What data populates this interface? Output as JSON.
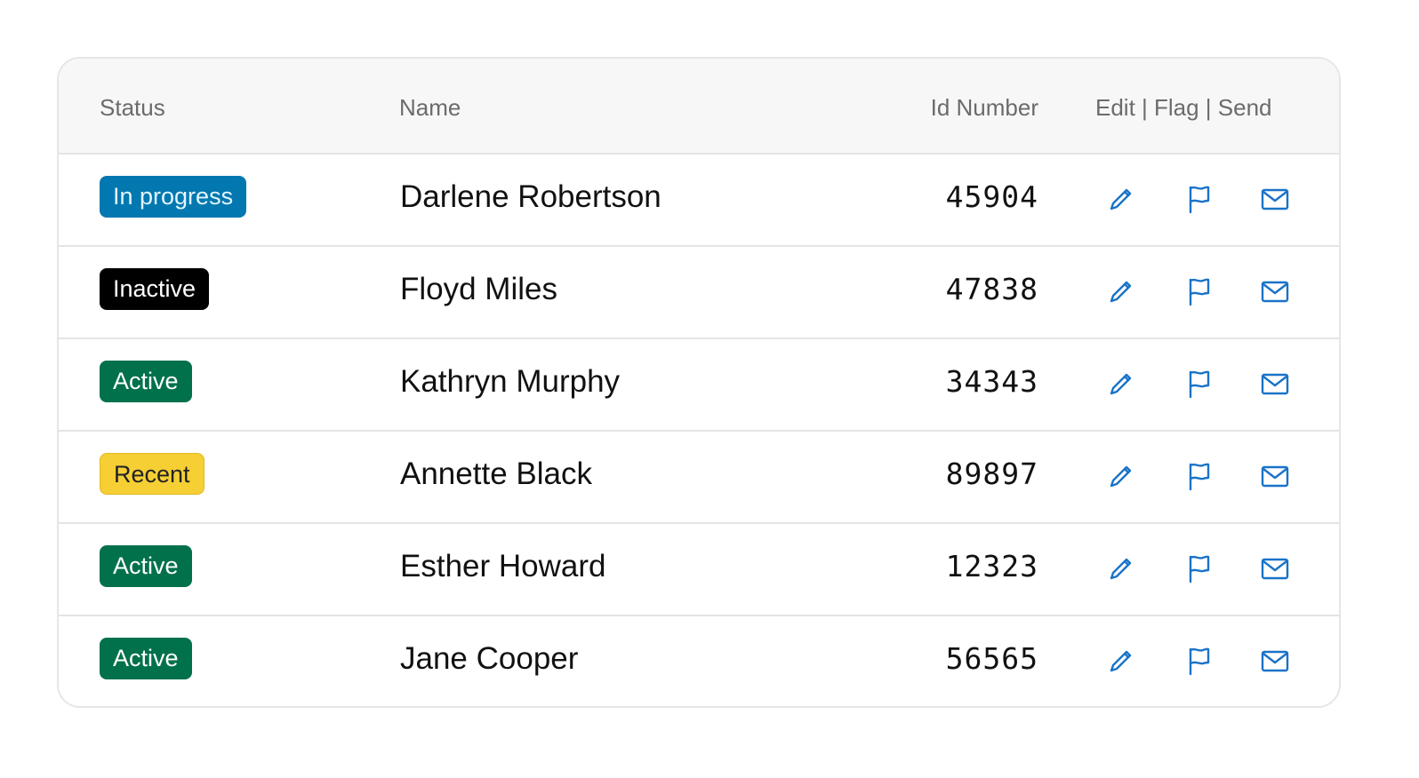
{
  "header": {
    "status": "Status",
    "name": "Name",
    "id": "Id Number",
    "actions": "Edit | Flag | Send"
  },
  "colors": {
    "in_progress": "#0378b0",
    "inactive": "#000000",
    "active": "#00714a",
    "recent": "#f6cf35",
    "icon": "#1a73c8"
  },
  "rows": [
    {
      "status": "In progress",
      "kind": "in_progress",
      "name": "Darlene Robertson",
      "id": "45904"
    },
    {
      "status": "Inactive",
      "kind": "inactive",
      "name": "Floyd Miles",
      "id": "47838"
    },
    {
      "status": "Active",
      "kind": "active",
      "name": "Kathryn Murphy",
      "id": "34343"
    },
    {
      "status": "Recent",
      "kind": "recent",
      "name": "Annette Black",
      "id": "89897"
    },
    {
      "status": "Active",
      "kind": "active",
      "name": "Esther Howard",
      "id": "12323"
    },
    {
      "status": "Active",
      "kind": "active",
      "name": "Jane Cooper",
      "id": "56565"
    }
  ],
  "icons": [
    "pencil-icon",
    "flag-icon",
    "envelope-icon"
  ]
}
